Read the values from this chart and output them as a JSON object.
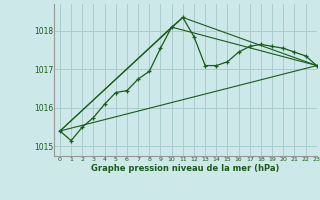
{
  "title": "Graphe pression niveau de la mer (hPa)",
  "bg_color": "#cce8e8",
  "grid_color": "#aacccc",
  "line_color": "#1a5c1a",
  "xlim": [
    -0.5,
    23
  ],
  "ylim": [
    1014.75,
    1018.7
  ],
  "yticks": [
    1015,
    1016,
    1017,
    1018
  ],
  "xticks": [
    0,
    1,
    2,
    3,
    4,
    5,
    6,
    7,
    8,
    9,
    10,
    11,
    12,
    13,
    14,
    15,
    16,
    17,
    18,
    19,
    20,
    21,
    22,
    23
  ],
  "series_main": {
    "x": [
      0,
      1,
      2,
      3,
      4,
      5,
      6,
      7,
      8,
      9,
      10,
      11,
      12,
      13,
      14,
      15,
      16,
      17,
      18,
      19,
      20,
      21,
      22,
      23
    ],
    "y": [
      1015.4,
      1015.15,
      1015.5,
      1015.75,
      1016.1,
      1016.4,
      1016.45,
      1016.75,
      1016.95,
      1017.55,
      1018.1,
      1018.35,
      1017.85,
      1017.1,
      1017.1,
      1017.2,
      1017.45,
      1017.6,
      1017.65,
      1017.6,
      1017.55,
      1017.45,
      1017.35,
      1017.1
    ]
  },
  "series_linear": {
    "x": [
      0,
      23
    ],
    "y": [
      1015.4,
      1017.1
    ]
  },
  "series_peak": {
    "x": [
      0,
      10,
      23
    ],
    "y": [
      1015.4,
      1018.1,
      1017.1
    ]
  },
  "series_peak2": {
    "x": [
      0,
      11,
      23
    ],
    "y": [
      1015.4,
      1018.35,
      1017.1
    ]
  }
}
